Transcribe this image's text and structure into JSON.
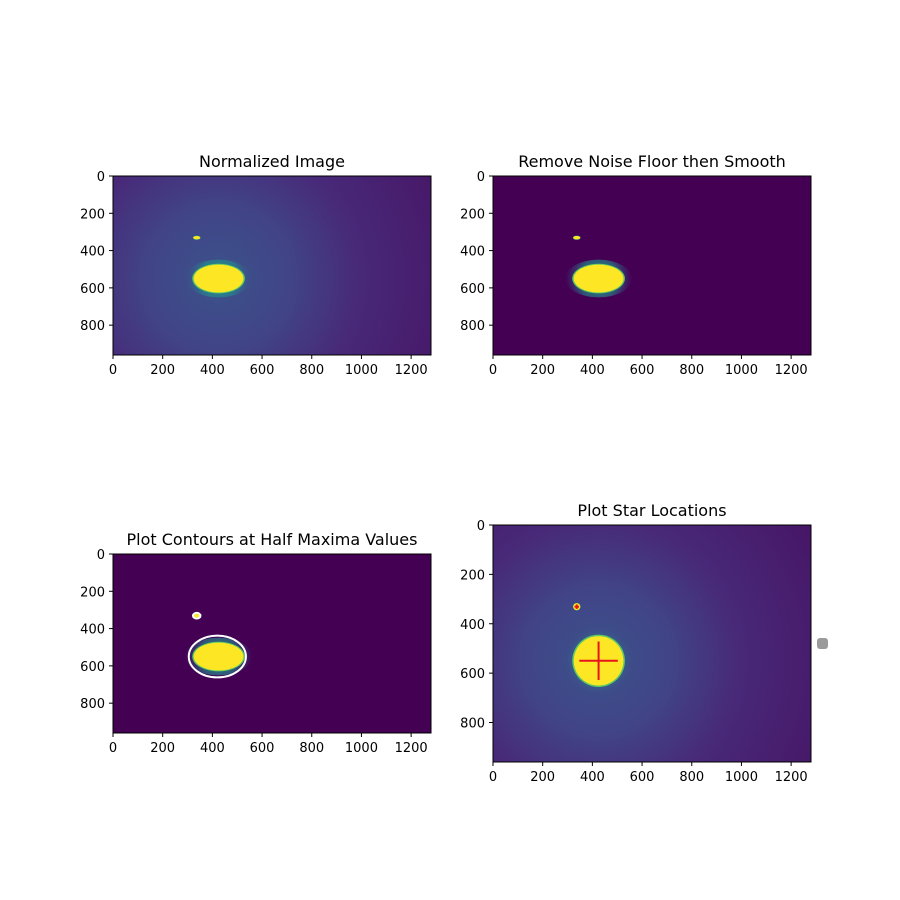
{
  "chart_data": [
    {
      "type": "heatmap",
      "title": "Normalized Image",
      "xlabel": "",
      "ylabel": "",
      "xlim": [
        0,
        1280
      ],
      "ylim": [
        960,
        0
      ],
      "xticks": [
        0,
        200,
        400,
        600,
        800,
        1000,
        1200
      ],
      "yticks": [
        0,
        200,
        400,
        600,
        800
      ],
      "colormap": "viridis",
      "background": "glow",
      "stars": [
        {
          "x": 425,
          "y": 550,
          "rx": 100,
          "ry": 75
        },
        {
          "x": 337,
          "y": 331,
          "rx": 14,
          "ry": 9
        }
      ]
    },
    {
      "type": "heatmap",
      "title": "Remove Noise Floor then Smooth",
      "xlabel": "",
      "ylabel": "",
      "xlim": [
        0,
        1280
      ],
      "ylim": [
        960,
        0
      ],
      "xticks": [
        0,
        200,
        400,
        600,
        800,
        1000,
        1200
      ],
      "yticks": [
        0,
        200,
        400,
        600,
        800
      ],
      "colormap": "viridis",
      "background": "flat",
      "stars": [
        {
          "x": 425,
          "y": 550,
          "rx": 100,
          "ry": 75
        },
        {
          "x": 337,
          "y": 331,
          "rx": 14,
          "ry": 9
        }
      ]
    },
    {
      "type": "heatmap",
      "title": "Plot Contours at Half Maxima Values",
      "xlabel": "",
      "ylabel": "",
      "xlim": [
        0,
        1280
      ],
      "ylim": [
        960,
        0
      ],
      "xticks": [
        0,
        200,
        400,
        600,
        800,
        1000,
        1200
      ],
      "yticks": [
        0,
        200,
        400,
        600,
        800
      ],
      "colormap": "viridis",
      "background": "flat",
      "stars": [
        {
          "x": 425,
          "y": 550,
          "rx": 100,
          "ry": 75
        },
        {
          "x": 337,
          "y": 331,
          "rx": 14,
          "ry": 9
        }
      ],
      "contours": [
        {
          "x": 420,
          "y": 550,
          "rx": 115,
          "ry": 112,
          "color": "#ffffff"
        },
        {
          "x": 337,
          "y": 331,
          "rx": 15,
          "ry": 15,
          "color": "#ffffff"
        }
      ]
    },
    {
      "type": "heatmap",
      "title": "Plot Star Locations",
      "xlabel": "",
      "ylabel": "",
      "xlim": [
        0,
        1280
      ],
      "ylim": [
        960,
        0
      ],
      "xticks": [
        0,
        200,
        400,
        600,
        800,
        1000,
        1200
      ],
      "yticks": [
        0,
        200,
        400,
        600,
        800
      ],
      "colormap": "viridis",
      "background": "glow",
      "stars": [
        {
          "x": 425,
          "y": 550,
          "rx": 100,
          "ry": 100
        },
        {
          "x": 337,
          "y": 331,
          "rx": 14,
          "ry": 14
        }
      ],
      "markers": [
        {
          "x": 425,
          "y": 550,
          "size": 155,
          "color": "#e8141c"
        },
        {
          "x": 337,
          "y": 331,
          "size": 18,
          "color": "#e8141c"
        }
      ]
    }
  ],
  "colors": {
    "viridis_dark": "#440154",
    "viridis_purple": "#471465",
    "viridis_blue": "#3b528b",
    "viridis_teal": "#21908d",
    "viridis_green": "#5ec962",
    "viridis_yellow": "#fde725",
    "marker_red": "#e8141c",
    "contour_white": "#ffffff"
  }
}
